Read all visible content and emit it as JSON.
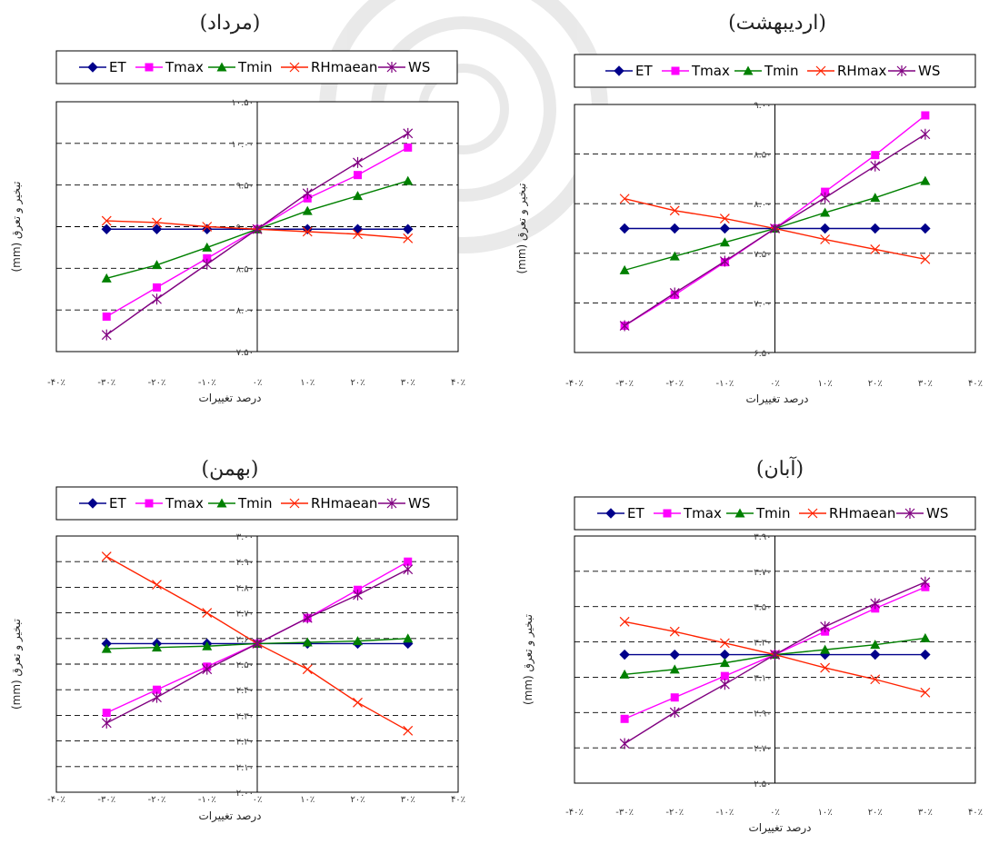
{
  "chart_data": [
    {
      "type": "line",
      "title": "(اردیبهشت)",
      "xlabel": "درصد تغییرات",
      "ylabel": "تبخیر و تعرق (mm)",
      "x_tick_labels": [
        "-۴۰٪",
        "-۳۰٪",
        "-۲۰٪",
        "-۱۰٪",
        "۰٪",
        "۱۰٪",
        "۲۰٪",
        "۳۰٪",
        "۴۰٪"
      ],
      "y_tick_labels": [
        "۶.۵۰",
        "۷.۰۰",
        "۷.۵۰",
        "۸.۰۰",
        "۸.۵۰",
        "۹.۰۰"
      ],
      "xlim": [
        -40,
        40
      ],
      "ylim": [
        6.5,
        9.0
      ],
      "grid": "horizontal-dashed",
      "legend_position": "top",
      "x": [
        -30,
        -20,
        -10,
        0,
        10,
        20,
        30
      ],
      "series": [
        {
          "name": "ET",
          "color": "#00008b",
          "marker": "diamond",
          "values": [
            7.75,
            7.75,
            7.75,
            7.75,
            7.75,
            7.75,
            7.75
          ]
        },
        {
          "name": "Tmax",
          "color": "#ff00ff",
          "marker": "square",
          "values": [
            6.77,
            7.08,
            7.41,
            7.75,
            8.12,
            8.49,
            8.89
          ]
        },
        {
          "name": "Tmin",
          "color": "#008000",
          "marker": "triangle",
          "values": [
            7.33,
            7.47,
            7.61,
            7.75,
            7.91,
            8.06,
            8.23
          ]
        },
        {
          "name": "RHmax",
          "color": "#ff2200",
          "marker": "x",
          "values": [
            8.05,
            7.93,
            7.85,
            7.75,
            7.64,
            7.54,
            7.44
          ]
        },
        {
          "name": "WS",
          "color": "#800080",
          "marker": "star",
          "values": [
            6.77,
            7.1,
            7.42,
            7.75,
            8.06,
            8.38,
            8.7
          ]
        }
      ]
    },
    {
      "type": "line",
      "title": "(مرداد)",
      "xlabel": "درصد تغییرات",
      "ylabel": "تبخیر و تعرق (mm)",
      "x_tick_labels": [
        "-۴۰٪",
        "-۳۰٪",
        "-۲۰٪",
        "-۱۰٪",
        "۰٪",
        "۱۰٪",
        "۲۰٪",
        "۳۰٪",
        "۴۰٪"
      ],
      "y_tick_labels": [
        "۷.۵۰",
        "۸.۰۰",
        "۸.۵۰",
        "۹.۰۰",
        "۹.۵۰",
        "۱۰.۰۰",
        "۱۰.۵۰"
      ],
      "xlim": [
        -40,
        40
      ],
      "ylim": [
        7.5,
        10.5
      ],
      "grid": "horizontal-dashed",
      "legend_position": "top",
      "x": [
        -30,
        -20,
        -10,
        0,
        10,
        20,
        30
      ],
      "series": [
        {
          "name": "ET",
          "color": "#00008b",
          "marker": "diamond",
          "values": [
            8.97,
            8.97,
            8.97,
            8.97,
            8.97,
            8.97,
            8.97
          ]
        },
        {
          "name": "Tmax",
          "color": "#ff00ff",
          "marker": "square",
          "values": [
            7.92,
            8.27,
            8.62,
            8.97,
            9.34,
            9.62,
            9.95
          ]
        },
        {
          "name": "Tmin",
          "color": "#008000",
          "marker": "triangle",
          "values": [
            8.38,
            8.54,
            8.75,
            8.97,
            9.19,
            9.37,
            9.55
          ]
        },
        {
          "name": "RHmaean",
          "color": "#ff2200",
          "marker": "x",
          "values": [
            9.07,
            9.05,
            9.0,
            8.97,
            8.94,
            8.91,
            8.86
          ]
        },
        {
          "name": "WS",
          "color": "#800080",
          "marker": "star",
          "values": [
            7.7,
            8.13,
            8.55,
            8.97,
            9.4,
            9.77,
            10.12
          ]
        }
      ]
    },
    {
      "type": "line",
      "title": "(آبان)",
      "xlabel": "درصد تغییرات",
      "ylabel": "تبخیر و تعرق (mm)",
      "x_tick_labels": [
        "-۴۰٪",
        "-۳۰٪",
        "-۲۰٪",
        "-۱۰٪",
        "۰٪",
        "۱۰٪",
        "۲۰٪",
        "۳۰٪",
        "۴۰٪"
      ],
      "y_tick_labels": [
        "۲.۵۰",
        "۲.۷۰",
        "۲.۹۰",
        "۳.۱۰",
        "۳.۳۰",
        "۳.۵۰",
        "۳.۷۰",
        "۳.۹۰"
      ],
      "xlim": [
        -40,
        40
      ],
      "ylim": [
        2.5,
        4.0
      ],
      "grid": "horizontal-dashed",
      "legend_position": "top",
      "x": [
        -30,
        -20,
        -10,
        0,
        10,
        20,
        30
      ],
      "series": [
        {
          "name": "ET",
          "color": "#00008b",
          "marker": "diamond",
          "values": [
            3.28,
            3.28,
            3.28,
            3.28,
            3.28,
            3.28,
            3.28
          ]
        },
        {
          "name": "Tmax",
          "color": "#ff00ff",
          "marker": "square",
          "values": [
            2.89,
            3.02,
            3.15,
            3.28,
            3.42,
            3.56,
            3.69
          ]
        },
        {
          "name": "Tmin",
          "color": "#008000",
          "marker": "triangle",
          "values": [
            3.16,
            3.19,
            3.23,
            3.28,
            3.31,
            3.34,
            3.38
          ]
        },
        {
          "name": "RHmaean",
          "color": "#ff2200",
          "marker": "x",
          "values": [
            3.48,
            3.42,
            3.35,
            3.28,
            3.2,
            3.13,
            3.05
          ]
        },
        {
          "name": "WS",
          "color": "#800080",
          "marker": "star",
          "values": [
            2.74,
            2.93,
            3.1,
            3.28,
            3.45,
            3.59,
            3.72
          ]
        }
      ]
    },
    {
      "type": "line",
      "title": "(بهمن)",
      "xlabel": "درصد تغییرات",
      "ylabel": "تبخیر و تعرق (mm)",
      "x_tick_labels": [
        "-۴۰٪",
        "-۳۰٪",
        "-۲۰٪",
        "-۱۰٪",
        "۰٪",
        "۱۰٪",
        "۲۰٪",
        "۳۰٪",
        "۴۰٪"
      ],
      "y_tick_labels": [
        "۲.۰۰",
        "۲.۱۰",
        "۲.۲۰",
        "۲.۳۰",
        "۲.۴۰",
        "۲.۵۰",
        "۲.۶۰",
        "۲.۷۰",
        "۲.۸۰",
        "۲.۹۰",
        "۳.۰۰"
      ],
      "xlim": [
        -40,
        40
      ],
      "ylim": [
        2.0,
        3.0
      ],
      "grid": "horizontal-dashed",
      "legend_position": "top",
      "x": [
        -30,
        -20,
        -10,
        0,
        10,
        20,
        30
      ],
      "series": [
        {
          "name": "ET",
          "color": "#00008b",
          "marker": "diamond",
          "values": [
            2.58,
            2.58,
            2.58,
            2.58,
            2.58,
            2.58,
            2.58
          ]
        },
        {
          "name": "Tmax",
          "color": "#ff00ff",
          "marker": "square",
          "values": [
            2.31,
            2.4,
            2.49,
            2.58,
            2.68,
            2.79,
            2.9
          ]
        },
        {
          "name": "Tmin",
          "color": "#008000",
          "marker": "triangle",
          "values": [
            2.56,
            2.565,
            2.57,
            2.58,
            2.585,
            2.59,
            2.6
          ]
        },
        {
          "name": "RHmaean",
          "color": "#ff2200",
          "marker": "x",
          "values": [
            2.92,
            2.81,
            2.7,
            2.58,
            2.48,
            2.35,
            2.24
          ]
        },
        {
          "name": "WS",
          "color": "#800080",
          "marker": "star",
          "values": [
            2.27,
            2.37,
            2.48,
            2.58,
            2.68,
            2.77,
            2.87
          ]
        }
      ]
    }
  ]
}
